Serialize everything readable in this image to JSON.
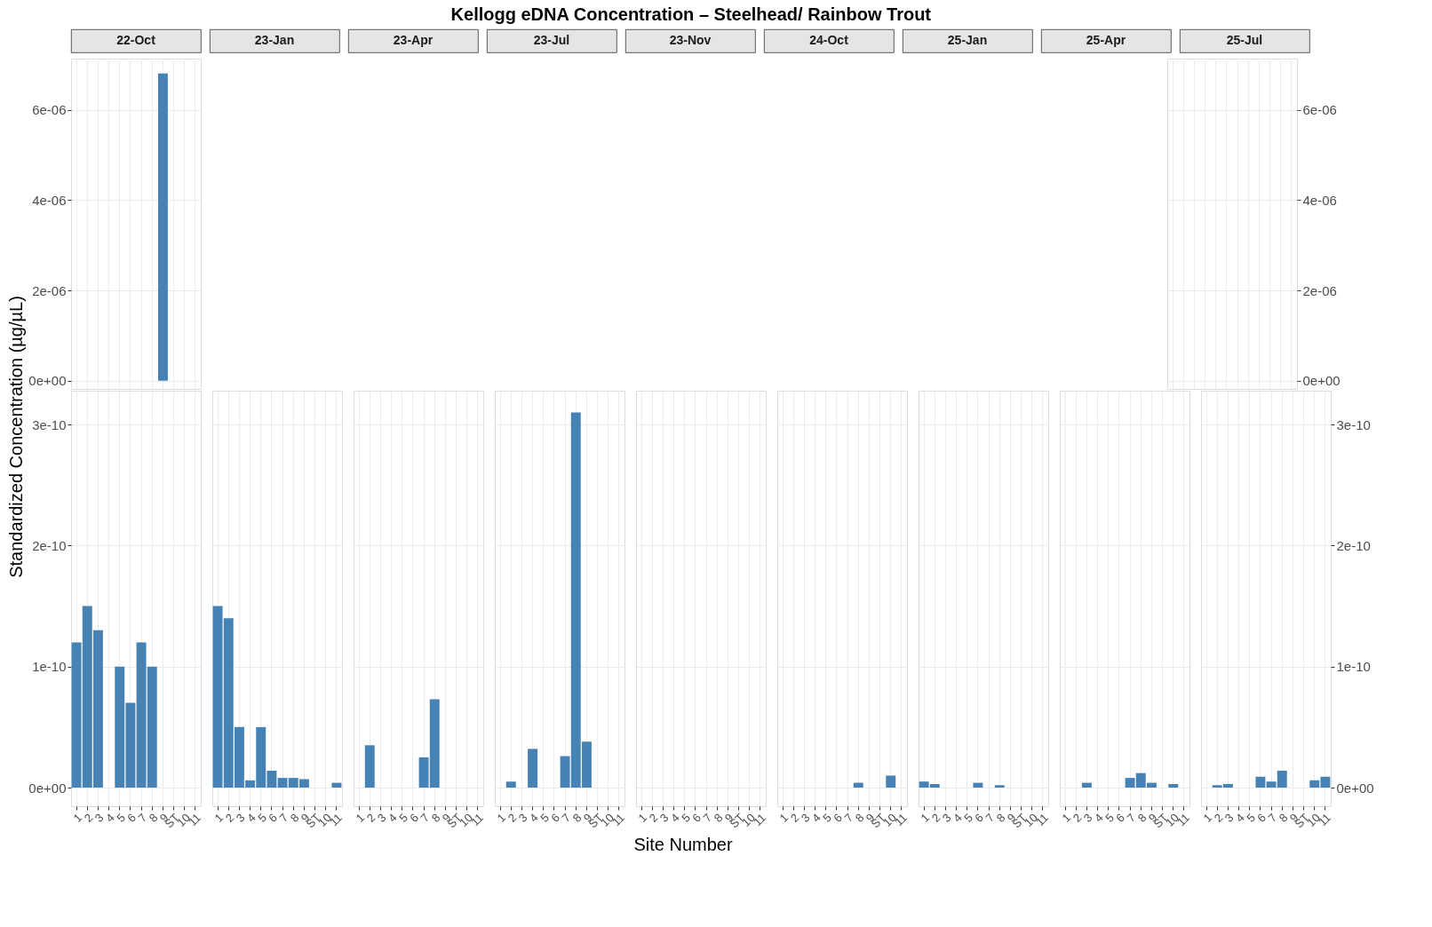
{
  "chart_data": [
    {
      "type": "bar",
      "title": "22-Oct",
      "annotations": [
        "Kellogg eDNA Concentration – Steelhead/ Rainbow Trout"
      ],
      "categories": [
        null,
        null,
        null,
        null,
        null,
        null,
        null,
        null,
        null,
        null,
        null,
        null
      ],
      "values": [
        null,
        null,
        null,
        null,
        null,
        null,
        null,
        null,
        6.8e-06,
        null,
        null,
        null
      ],
      "color": "#4682b4",
      "ylim": [
        -1.8e-07,
        7.13e-06
      ],
      "yticks": [
        {
          "value": 0,
          "label": "0e+00"
        },
        {
          "value": 2e-06,
          "label": "2e-06"
        },
        {
          "value": 4e-06,
          "label": "4e-06"
        },
        {
          "value": 6e-06,
          "label": "6e-06"
        }
      ],
      "grid": true,
      "tick_labels": "y"
    },
    {
      "type": "other",
      "title": "23-Jan"
    },
    {
      "type": "other",
      "title": "23-Apr"
    },
    {
      "type": "other",
      "title": "23-Jul"
    },
    {
      "type": "other",
      "title": "23-Nov"
    },
    {
      "type": "other",
      "title": "24-Oct"
    },
    {
      "type": "other",
      "title": "25-Jan"
    },
    {
      "type": "other",
      "title": "25-Apr"
    },
    {
      "type": "bar",
      "title": "25-Jul",
      "categories": [
        null,
        null,
        null,
        null,
        null,
        null,
        null,
        null,
        null,
        null,
        null,
        null
      ],
      "values": [
        null,
        null,
        null,
        null,
        null,
        null,
        null,
        null,
        null,
        null,
        null,
        null
      ],
      "color": "#4682b4",
      "ylim": [
        -1.8e-07,
        7.13e-06
      ],
      "yticks": [
        {
          "value": 0,
          "label": "0e+00"
        },
        {
          "value": 2e-06,
          "label": "2e-06"
        },
        {
          "value": 4e-06,
          "label": "4e-06"
        },
        {
          "value": 6e-06,
          "label": "6e-06"
        }
      ],
      "grid": true,
      "tick_labels": "y"
    },
    {
      "type": "bar",
      "categories": [
        "1",
        "2",
        "3",
        "4",
        "5",
        "6",
        "7",
        "8",
        "9",
        "ST",
        "10",
        "11"
      ],
      "values": [
        1.2e-10,
        1.5e-10,
        1.3e-10,
        null,
        1e-10,
        7e-11,
        1.2e-10,
        1e-10,
        null,
        null,
        null,
        null
      ],
      "ylabel": "Standardized Concentration (µg/µL)",
      "color": "#4682b4",
      "ylim": [
        -1.54e-11,
        3.28e-10
      ],
      "yticks": [
        {
          "value": 0,
          "label": "0e+00"
        },
        {
          "value": 1e-10,
          "label": "1e-10"
        },
        {
          "value": 2e-10,
          "label": "2e-10"
        },
        {
          "value": 3e-10,
          "label": "3e-10"
        }
      ],
      "grid": true
    },
    {
      "type": "bar",
      "categories": [
        "1",
        "2",
        "3",
        "4",
        "5",
        "6",
        "7",
        "8",
        "9",
        "ST",
        "10",
        "11"
      ],
      "values": [
        1.5e-10,
        1.4e-10,
        5e-11,
        6e-12,
        5e-11,
        1.4e-11,
        8e-12,
        8e-12,
        7e-12,
        null,
        null,
        4e-12
      ],
      "color": "#4682b4",
      "ylim": [
        -1.54e-11,
        3.28e-10
      ],
      "yticks": [
        0,
        1e-10,
        2e-10,
        3e-10
      ],
      "grid": true,
      "tick_labels": "x"
    },
    {
      "type": "bar",
      "categories": [
        "1",
        "2",
        "3",
        "4",
        "5",
        "6",
        "7",
        "8",
        "9",
        "ST",
        "10",
        "11"
      ],
      "values": [
        null,
        3.5e-11,
        null,
        null,
        null,
        null,
        2.5e-11,
        7.3e-11,
        null,
        null,
        null,
        null
      ],
      "color": "#4682b4",
      "ylim": [
        -1.54e-11,
        3.28e-10
      ],
      "yticks": [
        0,
        1e-10,
        2e-10,
        3e-10
      ],
      "grid": true,
      "tick_labels": "x"
    },
    {
      "type": "bar",
      "categories": [
        "1",
        "2",
        "3",
        "4",
        "5",
        "6",
        "7",
        "8",
        "9",
        "ST",
        "10",
        "11"
      ],
      "values": [
        null,
        5e-12,
        null,
        3.2e-11,
        null,
        null,
        2.6e-11,
        3.1e-10,
        3.8e-11,
        null,
        null,
        null
      ],
      "color": "#4682b4",
      "ylim": [
        -1.54e-11,
        3.28e-10
      ],
      "yticks": [
        0,
        1e-10,
        2e-10,
        3e-10
      ],
      "grid": true,
      "tick_labels": "x"
    },
    {
      "type": "bar",
      "categories": [
        "1",
        "2",
        "3",
        "4",
        "5",
        "6",
        "7",
        "8",
        "9",
        "ST",
        "10",
        "11"
      ],
      "values": [
        null,
        null,
        null,
        null,
        null,
        null,
        null,
        null,
        null,
        null,
        null,
        null
      ],
      "xlabel": "Site Number",
      "color": "#4682b4",
      "ylim": [
        -1.54e-11,
        3.28e-10
      ],
      "yticks": [
        0,
        1e-10,
        2e-10,
        3e-10
      ],
      "grid": true,
      "tick_labels": "x"
    },
    {
      "type": "bar",
      "categories": [
        "1",
        "2",
        "3",
        "4",
        "5",
        "6",
        "7",
        "8",
        "9",
        "ST",
        "10",
        "11"
      ],
      "values": [
        null,
        null,
        null,
        null,
        null,
        null,
        null,
        4e-12,
        null,
        null,
        1e-11,
        null
      ],
      "color": "#4682b4",
      "ylim": [
        -1.54e-11,
        3.28e-10
      ],
      "yticks": [
        0,
        1e-10,
        2e-10,
        3e-10
      ],
      "grid": true,
      "tick_labels": "x"
    },
    {
      "type": "bar",
      "categories": [
        "1",
        "2",
        "3",
        "4",
        "5",
        "6",
        "7",
        "8",
        "9",
        "ST",
        "10",
        "11"
      ],
      "values": [
        5e-12,
        3e-12,
        null,
        null,
        null,
        4e-12,
        null,
        2e-12,
        null,
        null,
        null,
        null
      ],
      "color": "#4682b4",
      "ylim": [
        -1.54e-11,
        3.28e-10
      ],
      "yticks": [
        0,
        1e-10,
        2e-10,
        3e-10
      ],
      "grid": true,
      "tick_labels": "x"
    },
    {
      "type": "bar",
      "categories": [
        "1",
        "2",
        "3",
        "4",
        "5",
        "6",
        "7",
        "8",
        "9",
        "ST",
        "10",
        "11"
      ],
      "values": [
        null,
        null,
        4e-12,
        null,
        null,
        null,
        8e-12,
        1.2e-11,
        4e-12,
        null,
        3e-12,
        null
      ],
      "color": "#4682b4",
      "ylim": [
        -1.54e-11,
        3.28e-10
      ],
      "yticks": [
        0,
        1e-10,
        2e-10,
        3e-10
      ],
      "grid": true,
      "tick_labels": "x"
    },
    {
      "type": "bar",
      "categories": [
        "1",
        "2",
        "3",
        "4",
        "5",
        "6",
        "7",
        "8",
        "9",
        "ST",
        "10",
        "11"
      ],
      "values": [
        null,
        2e-12,
        3e-12,
        null,
        null,
        9e-12,
        5e-12,
        1.4e-11,
        null,
        null,
        6e-12,
        9e-12
      ],
      "color": "#4682b4",
      "ylim": [
        -1.54e-11,
        3.28e-10
      ],
      "yticks": [
        {
          "value": 0,
          "label": "0e+00"
        },
        {
          "value": 1e-10,
          "label": "1e-10"
        },
        {
          "value": 2e-10,
          "label": "2e-10"
        },
        {
          "value": 3e-10,
          "label": "3e-10"
        }
      ],
      "grid": true
    }
  ]
}
